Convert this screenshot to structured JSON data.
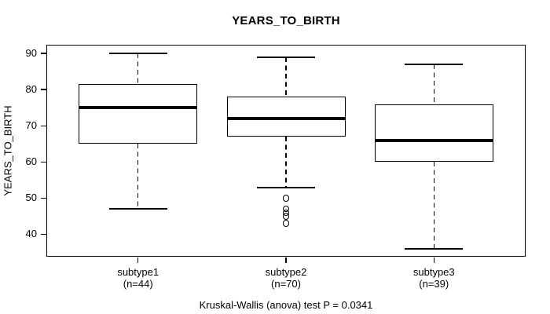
{
  "chart_data": {
    "type": "boxplot",
    "title": "YEARS_TO_BIRTH",
    "ylabel": "YEARS_TO_BIRTH",
    "xlabel": "",
    "annotation": "Kruskal-Wallis (anova) test P = 0.0341",
    "y_ticks": [
      40,
      50,
      60,
      70,
      80,
      90
    ],
    "ylim": [
      33.8,
      92.4
    ],
    "grid": false,
    "legend": "none",
    "colors": {
      "line": "#000000",
      "background": "#ffffff"
    },
    "groups": [
      {
        "label": "subtype1",
        "sublabel": "(n=44)",
        "n": 44,
        "whisker_low": 47,
        "q1": 65,
        "median": 75,
        "q3": 81.5,
        "whisker_high": 90,
        "outliers": []
      },
      {
        "label": "subtype2",
        "sublabel": "(n=70)",
        "n": 70,
        "whisker_low": 53,
        "q1": 67,
        "median": 72,
        "q3": 78,
        "whisker_high": 89,
        "outliers": [
          50,
          47,
          46,
          45,
          43
        ]
      },
      {
        "label": "subtype3",
        "sublabel": "(n=39)",
        "n": 39,
        "whisker_low": 36,
        "q1": 60,
        "median": 66,
        "q3": 76,
        "whisker_high": 87,
        "outliers": []
      }
    ]
  }
}
